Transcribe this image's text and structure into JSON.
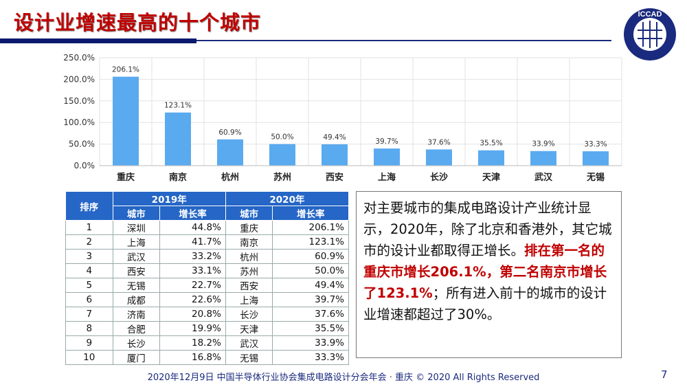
{
  "title": "设计业增速最高的十个城市",
  "logo": {
    "text": "ICCAD",
    "color": "#1a2a7e"
  },
  "chart_data": {
    "type": "bar",
    "categories": [
      "重庆",
      "南京",
      "杭州",
      "苏州",
      "西安",
      "上海",
      "长沙",
      "天津",
      "武汉",
      "无锡"
    ],
    "values": [
      206.1,
      123.1,
      60.9,
      50.0,
      49.4,
      39.7,
      37.6,
      35.5,
      33.9,
      33.3
    ],
    "data_labels": [
      "206.1%",
      "123.1%",
      "60.9%",
      "50.0%",
      "49.4%",
      "39.7%",
      "37.6%",
      "35.5%",
      "33.9%",
      "33.3%"
    ],
    "ylim": [
      0,
      250
    ],
    "yticks": [
      "0.0%",
      "50.0%",
      "100.0%",
      "150.0%",
      "200.0%",
      "250.0%"
    ],
    "grid": true,
    "bar_color": "#5aaaf0"
  },
  "table": {
    "header_rank": "排序",
    "years": [
      "2019年",
      "2020年"
    ],
    "sub_headers": [
      "城市",
      "增长率",
      "城市",
      "增长率"
    ],
    "rows": [
      [
        "1",
        "深圳",
        "44.8%",
        "重庆",
        "206.1%"
      ],
      [
        "2",
        "上海",
        "41.7%",
        "南京",
        "123.1%"
      ],
      [
        "3",
        "武汉",
        "33.2%",
        "杭州",
        "60.9%"
      ],
      [
        "4",
        "西安",
        "33.1%",
        "苏州",
        "50.0%"
      ],
      [
        "5",
        "无锡",
        "22.7%",
        "西安",
        "49.4%"
      ],
      [
        "6",
        "成都",
        "22.6%",
        "上海",
        "39.7%"
      ],
      [
        "7",
        "济南",
        "20.8%",
        "长沙",
        "37.6%"
      ],
      [
        "8",
        "合肥",
        "19.9%",
        "天津",
        "35.5%"
      ],
      [
        "9",
        "长沙",
        "18.2%",
        "武汉",
        "33.9%"
      ],
      [
        "10",
        "厦门",
        "16.8%",
        "无锡",
        "33.3%"
      ]
    ]
  },
  "textbox": {
    "part1": "对主要城市的集成电路设计产业统计显示，2020年，除了北京和香港外，其它城市的设计业都取得正增长。",
    "part2": "排在第一名的重庆市增长206.1%，第二名南京市增长了123.1%",
    "part3": "；所有进入前十的城市的设计业增速都超过了30%。"
  },
  "footer": "2020年12月9日  中国半导体行业协会集成电路设计分会年会 · 重庆 © 2020 All Rights Reserved",
  "page_number": "7"
}
